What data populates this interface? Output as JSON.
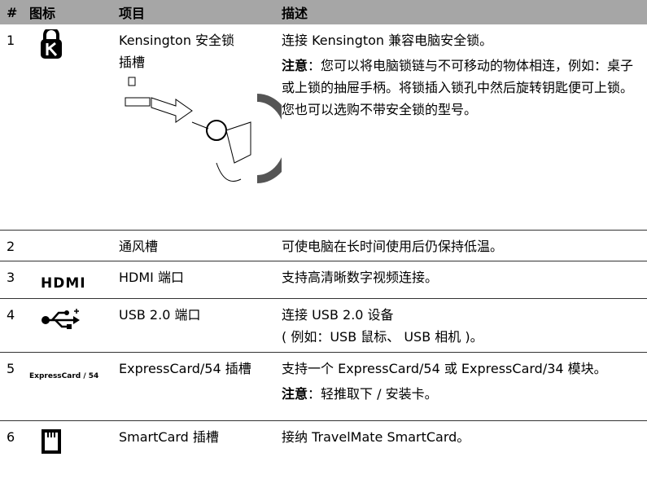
{
  "table": {
    "header": [
      "#",
      "图标",
      "项目",
      "描述"
    ],
    "rows": [
      {
        "num": "1",
        "item": [
          "Kensington 安全锁",
          "插槽"
        ],
        "desc": [
          {
            "text": "连接 Kensington 兼容电脑安全锁。"
          },
          {
            "bold": "注意",
            "text": "：您可以将电脑锁链与不可移动的物体相连，例如：桌子或上锁的抽屉手柄。将锁插入锁孔中然后旋转钥匙便可上锁。您也可以选购不带安全锁的型号。"
          }
        ]
      },
      {
        "num": "2",
        "item": [
          "通风槽"
        ],
        "desc": [
          {
            "text": "可使电脑在长时间使用后仍保持低温。"
          }
        ]
      },
      {
        "num": "3",
        "icon_text": "HDMI",
        "item": [
          "HDMI 端口"
        ],
        "desc": [
          {
            "text": "支持高清晰数字视频连接。"
          }
        ]
      },
      {
        "num": "4",
        "item": [
          "USB 2.0 端口"
        ],
        "desc": [
          {
            "text": "连接 USB 2.0 设备"
          },
          {
            "text": "( 例如：USB 鼠标、 USB 相机 )。"
          }
        ]
      },
      {
        "num": "5",
        "icon_text": "ExpressCard / 54",
        "item": [
          "ExpressCard/54 插槽"
        ],
        "desc": [
          {
            "text": "支持一个 ExpressCard/54 或 ExpressCard/34 模块。"
          },
          {
            "bold": "注意",
            "text": "：轻推取下 / 安装卡。"
          }
        ]
      },
      {
        "num": "6",
        "item": [
          "SmartCard 插槽"
        ],
        "desc": [
          {
            "text": "接纳 TravelMate SmartCard。"
          }
        ]
      }
    ]
  }
}
